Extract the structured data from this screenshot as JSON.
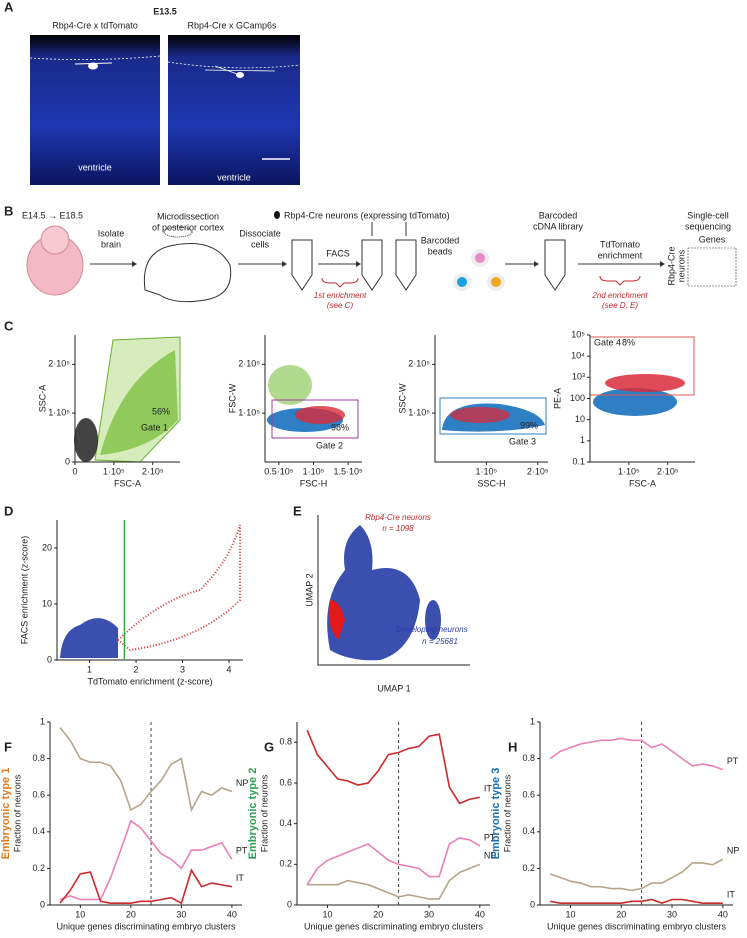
{
  "panel_labels": [
    "A",
    "B",
    "C",
    "D",
    "E",
    "F",
    "G",
    "H"
  ],
  "panel_a": {
    "title": "E13.5",
    "images": [
      {
        "label": "Rbp4-Cre x tdTomato",
        "region": "ventricle"
      },
      {
        "label": "Rbp4-Cre x GCamp6s",
        "region": "ventricle"
      }
    ]
  },
  "panel_b": {
    "age": "E14.5 → E18.5",
    "isolate": [
      "Isolate",
      "brain"
    ],
    "microdissection": [
      "Microdissection",
      "of posterior cortex"
    ],
    "dissociate": [
      "Dissociate",
      "cells"
    ],
    "neurons": "Rbp4-Cre neurons (expressing tdTomato)",
    "facs": "FACS",
    "first_enrichment": [
      "1st enrichment",
      "(see C)"
    ],
    "beads": [
      "Barcoded",
      "beads"
    ],
    "library": [
      "Barcoded",
      "cDNA library"
    ],
    "tdtomato": [
      "TdTomato",
      "enrichment"
    ],
    "second_enrichment": [
      "2nd enrichment",
      "(see D, E)"
    ],
    "sequencing": [
      "Single-cell",
      "sequencing"
    ],
    "genes": "Genes",
    "rows": [
      "Rbp4-Cre",
      "neurons"
    ]
  },
  "chart_data": [
    {
      "type": "scatter",
      "xlabel": "FSC-A",
      "ylabel": "SSC-A",
      "xlim": [
        0,
        270000
      ],
      "ylim": [
        0,
        260000
      ],
      "xticks": [
        0,
        {
          "value": 100000,
          "label": "1·10⁵"
        },
        {
          "value": 200000,
          "label": "2·10⁵"
        }
      ],
      "yticks": [
        0,
        {
          "value": 100000,
          "label": "1·10⁵"
        },
        {
          "value": 200000,
          "label": "2·10⁵"
        }
      ],
      "annotations": [
        "56%",
        "Gate 1"
      ]
    },
    {
      "type": "scatter",
      "xlabel": "FSC-H",
      "ylabel": "FSC-W",
      "xlim": [
        30000,
        170000
      ],
      "ylim": [
        0,
        260000
      ],
      "xticks": [
        {
          "value": 50000,
          "label": "0.5·10⁵"
        },
        {
          "value": 100000,
          "label": "1·10⁵"
        },
        {
          "value": 150000,
          "label": "1.5·10⁵"
        }
      ],
      "yticks": [
        {
          "value": 100000,
          "label": "1·10⁵"
        },
        {
          "value": 200000,
          "label": "2·10⁵"
        }
      ],
      "annotations": [
        "98%",
        "Gate 2"
      ]
    },
    {
      "type": "scatter",
      "xlabel": "SSC-H",
      "ylabel": "SSC-W",
      "xlim": [
        0,
        220000
      ],
      "ylim": [
        0,
        260000
      ],
      "xticks": [
        {
          "value": 100000,
          "label": "1·10⁵"
        },
        {
          "value": 200000,
          "label": "2·10⁵"
        }
      ],
      "yticks": [
        {
          "value": 100000,
          "label": "1·10⁵"
        },
        {
          "value": 200000,
          "label": "2·10⁵"
        }
      ],
      "annotations": [
        "99%",
        "Gate 3"
      ]
    },
    {
      "type": "scatter",
      "xlabel": "FSC-A",
      "ylabel": "PE-A",
      "yscale": "log",
      "xlim": [
        0,
        270000
      ],
      "ylim": [
        0.1,
        100000
      ],
      "xticks": [
        {
          "value": 100000,
          "label": "1·10⁵"
        },
        {
          "value": 200000,
          "label": "2·10⁵"
        }
      ],
      "yticks": [
        0.1,
        1,
        10,
        100,
        {
          "value": 1000,
          "label": "10³"
        },
        {
          "value": 10000,
          "label": "10⁴"
        },
        {
          "value": 100000,
          "label": "10⁵"
        }
      ],
      "annotations": [
        "Gate 4",
        "8%"
      ]
    },
    {
      "type": "scatter",
      "xlabel": "TdTomato enrichment (z-score)",
      "ylabel": "FACS enrichment (z-score)",
      "xlim": [
        0.3,
        4.3
      ],
      "ylim": [
        0,
        25
      ],
      "xticks": [
        1,
        2,
        3,
        4
      ],
      "yticks": [
        0,
        10,
        20
      ],
      "threshold": 1.75
    },
    {
      "type": "scatter",
      "xlabel": "UMAP 1",
      "ylabel": "UMAP 2",
      "annotations": [
        "Rbp4-Cre neurons",
        "n = 1098",
        "Developing neurons",
        "n = 25681"
      ]
    },
    {
      "type": "line",
      "side_title": "Embryonic type 1",
      "title_color": "#e07b20",
      "xlabel": "Unique genes discriminating embryo clusters",
      "ylabel": "Fraction of neurons",
      "xlim": [
        4,
        42
      ],
      "ylim": [
        0,
        1
      ],
      "xticks": [
        10,
        20,
        30,
        40
      ],
      "yticks": [
        0,
        0.2,
        0.4,
        0.6,
        0.8,
        1
      ],
      "vline": 24,
      "x": [
        6,
        8,
        10,
        12,
        14,
        16,
        18,
        20,
        22,
        24,
        26,
        28,
        30,
        32,
        34,
        36,
        38,
        40
      ],
      "series": [
        {
          "name": "NP",
          "color": "#b5a48a",
          "values": [
            0.97,
            0.9,
            0.8,
            0.78,
            0.78,
            0.76,
            0.68,
            0.52,
            0.55,
            0.62,
            0.68,
            0.77,
            0.8,
            0.52,
            0.62,
            0.6,
            0.64,
            0.62
          ]
        },
        {
          "name": "PT",
          "color": "#e880b8",
          "values": [
            0.03,
            0.05,
            0.03,
            0.03,
            0.03,
            0.15,
            0.3,
            0.46,
            0.42,
            0.35,
            0.28,
            0.25,
            0.2,
            0.3,
            0.3,
            0.32,
            0.34,
            0.25
          ]
        },
        {
          "name": "IT",
          "color": "#cc2a2a",
          "values": [
            0.01,
            0.08,
            0.17,
            0.18,
            0.02,
            0.01,
            0.01,
            0.01,
            0.02,
            0.02,
            0.03,
            0.04,
            0.01,
            0.19,
            0.1,
            0.12,
            0.11,
            0.1
          ]
        }
      ]
    },
    {
      "type": "line",
      "side_title": "Embryonic type 2",
      "title_color": "#2aa050",
      "xlabel": "Unique genes discriminating embryo clusters",
      "ylabel": "Fraction of neurons",
      "xlim": [
        4,
        42
      ],
      "ylim": [
        0,
        0.9
      ],
      "xticks": [
        10,
        20,
        30,
        40
      ],
      "yticks": [
        0,
        0.2,
        0.4,
        0.6,
        0.8
      ],
      "vline": 24,
      "x": [
        6,
        8,
        10,
        12,
        14,
        16,
        18,
        20,
        22,
        24,
        26,
        28,
        30,
        32,
        34,
        36,
        38,
        40
      ],
      "series": [
        {
          "name": "IT",
          "color": "#cc2a2a",
          "values": [
            0.86,
            0.74,
            0.68,
            0.62,
            0.61,
            0.59,
            0.6,
            0.66,
            0.74,
            0.75,
            0.77,
            0.78,
            0.83,
            0.84,
            0.58,
            0.5,
            0.52,
            0.53
          ]
        },
        {
          "name": "PT",
          "color": "#e880b8",
          "values": [
            0.1,
            0.18,
            0.22,
            0.24,
            0.26,
            0.28,
            0.3,
            0.26,
            0.22,
            0.2,
            0.19,
            0.18,
            0.14,
            0.14,
            0.3,
            0.33,
            0.32,
            0.29
          ]
        },
        {
          "name": "NP",
          "color": "#b5a48a",
          "values": [
            0.1,
            0.1,
            0.1,
            0.1,
            0.12,
            0.11,
            0.1,
            0.08,
            0.06,
            0.04,
            0.05,
            0.04,
            0.03,
            0.03,
            0.12,
            0.16,
            0.18,
            0.2
          ]
        }
      ]
    },
    {
      "type": "line",
      "side_title": "Embryonic type 3",
      "title_color": "#1a6fb0",
      "xlabel": "Unique genes discriminating embryo clusters",
      "ylabel": "Fraction of neurons",
      "xlim": [
        4,
        42
      ],
      "ylim": [
        0,
        1
      ],
      "xticks": [
        10,
        20,
        30,
        40
      ],
      "yticks": [
        0,
        0.2,
        0.4,
        0.6,
        0.8,
        1
      ],
      "vline": 24,
      "x": [
        6,
        8,
        10,
        12,
        14,
        16,
        18,
        20,
        22,
        24,
        26,
        28,
        30,
        32,
        34,
        36,
        38,
        40
      ],
      "series": [
        {
          "name": "PT",
          "color": "#e880b8",
          "values": [
            0.8,
            0.84,
            0.86,
            0.88,
            0.89,
            0.9,
            0.9,
            0.91,
            0.9,
            0.9,
            0.86,
            0.88,
            0.84,
            0.8,
            0.76,
            0.77,
            0.76,
            0.74
          ]
        },
        {
          "name": "NP",
          "color": "#b5a48a",
          "values": [
            0.17,
            0.15,
            0.13,
            0.12,
            0.1,
            0.1,
            0.09,
            0.09,
            0.08,
            0.09,
            0.12,
            0.12,
            0.15,
            0.18,
            0.23,
            0.23,
            0.22,
            0.25
          ]
        },
        {
          "name": "IT",
          "color": "#cc2a2a",
          "values": [
            0.02,
            0.01,
            0.01,
            0.01,
            0.01,
            0.01,
            0.01,
            0.01,
            0.02,
            0.02,
            0.03,
            0.01,
            0.03,
            0.03,
            0.02,
            0.01,
            0.01,
            0.01
          ]
        }
      ]
    }
  ]
}
